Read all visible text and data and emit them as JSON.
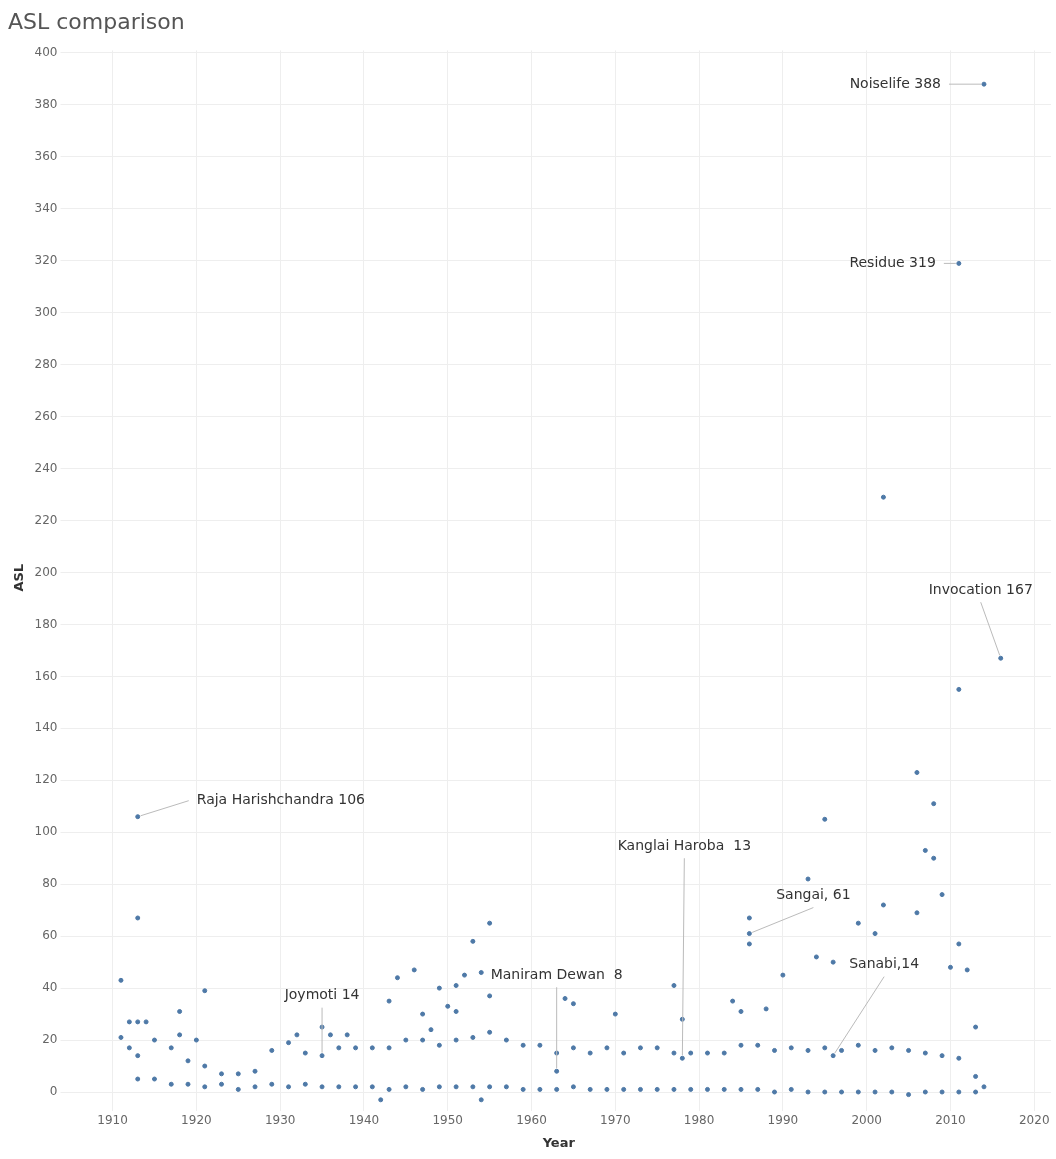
{
  "chart_data": {
    "type": "scatter",
    "title": "ASL comparison",
    "xlabel": "Year",
    "ylabel": "ASL",
    "xlim": [
      1904.5,
      2022
    ],
    "xticks": [
      1910,
      1920,
      1930,
      1940,
      1950,
      1960,
      1970,
      1980,
      1990,
      2000,
      2010,
      2020
    ],
    "ylim": [
      -5,
      401
    ],
    "yticks": [
      0,
      20,
      40,
      60,
      80,
      100,
      120,
      140,
      160,
      180,
      200,
      220,
      240,
      260,
      280,
      300,
      320,
      340,
      360,
      380,
      400
    ],
    "grid": true,
    "legend": false,
    "marker": "circle",
    "series": [
      {
        "color": "#4e79a7",
        "x": [
          1911,
          1911,
          1912,
          1912,
          1913,
          1913,
          1913,
          1914,
          1918,
          1918,
          1920,
          1921,
          1932,
          1935,
          1936,
          1938,
          1942,
          1943,
          1944,
          1946,
          1947,
          1948,
          1949,
          1950,
          1951,
          1951,
          1952,
          1953,
          1954,
          1954,
          1955,
          1955,
          1964,
          1965,
          1970,
          1977,
          1978,
          1984,
          1985,
          1986,
          1986,
          1986,
          1988,
          1990,
          1993,
          1994,
          1995,
          1996,
          1999,
          2001,
          2002,
          2002,
          2006,
          2006,
          2007,
          2008,
          2008,
          2009,
          2010,
          2011,
          2011,
          2011,
          2012,
          2013,
          2014,
          2014,
          2016,
          1913,
          1913,
          1915,
          1915,
          1917,
          1917,
          1919,
          1919,
          1921,
          1921,
          1923,
          1923,
          1925,
          1925,
          1927,
          1927,
          1929,
          1929,
          1931,
          1931,
          1933,
          1933,
          1935,
          1935,
          1937,
          1937,
          1939,
          1939,
          1941,
          1941,
          1943,
          1943,
          1945,
          1945,
          1947,
          1947,
          1949,
          1949,
          1951,
          1951,
          1953,
          1953,
          1955,
          1955,
          1957,
          1957,
          1959,
          1959,
          1961,
          1961,
          1963,
          1963,
          1965,
          1965,
          1967,
          1967,
          1969,
          1969,
          1971,
          1971,
          1973,
          1973,
          1975,
          1975,
          1977,
          1977,
          1979,
          1979,
          1981,
          1981,
          1983,
          1983,
          1985,
          1985,
          1987,
          1987,
          1989,
          1989,
          1991,
          1991,
          1993,
          1993,
          1995,
          1995,
          1997,
          1997,
          1999,
          1999,
          2001,
          2001,
          2003,
          2003,
          2005,
          2005,
          2007,
          2007,
          2009,
          2009,
          2011,
          2011,
          2013,
          2013,
          1963,
          1978,
          1996
        ],
        "values": [
          43,
          21,
          27,
          17,
          106,
          67,
          27,
          27,
          31,
          22,
          20,
          39,
          22,
          25,
          22,
          22,
          -3,
          35,
          44,
          47,
          30,
          24,
          40,
          33,
          41,
          31,
          45,
          58,
          46,
          -3,
          65,
          37,
          36,
          34,
          30,
          41,
          28,
          35,
          31,
          67,
          61,
          57,
          32,
          45,
          82,
          52,
          105,
          50,
          65,
          61,
          229,
          72,
          123,
          69,
          93,
          111,
          90,
          76,
          48,
          319,
          155,
          57,
          47,
          25,
          388,
          2,
          167,
          5,
          14,
          5,
          20,
          3,
          17,
          3,
          12,
          2,
          10,
          3,
          7,
          1,
          7,
          2,
          8,
          3,
          16,
          2,
          19,
          3,
          15,
          2,
          14,
          2,
          17,
          2,
          17,
          2,
          17,
          1,
          17,
          2,
          20,
          1,
          20,
          2,
          18,
          2,
          20,
          2,
          21,
          2,
          23,
          2,
          20,
          1,
          18,
          1,
          18,
          1,
          15,
          2,
          17,
          1,
          15,
          1,
          17,
          1,
          15,
          1,
          17,
          1,
          17,
          1,
          15,
          1,
          15,
          1,
          15,
          1,
          15,
          1,
          18,
          1,
          18,
          0,
          16,
          1,
          17,
          0,
          16,
          0,
          17,
          0,
          16,
          0,
          18,
          0,
          16,
          0,
          17,
          -1,
          16,
          0,
          15,
          0,
          14,
          0,
          13,
          0,
          6,
          8,
          13,
          14
        ]
      }
    ],
    "annotations": [
      {
        "text": "Raja Harishchandra 106",
        "x": 1913,
        "y": 106
      },
      {
        "text": "Noiselife 388",
        "x": 2014,
        "y": 388
      },
      {
        "text": "Residue 319",
        "x": 2011,
        "y": 319
      },
      {
        "text": "Invocation 167",
        "x": 2016,
        "y": 167
      },
      {
        "text": "Joymoti 14",
        "x": 1935,
        "y": 14
      },
      {
        "text": "Maniram Dewan  8",
        "x": 1963,
        "y": 8
      },
      {
        "text": "Kanglai Haroba  13",
        "x": 1978,
        "y": 13
      },
      {
        "text": "Sangai, 61",
        "x": 1986,
        "y": 61
      },
      {
        "text": "Sanabi,14",
        "x": 1996,
        "y": 14
      }
    ]
  }
}
